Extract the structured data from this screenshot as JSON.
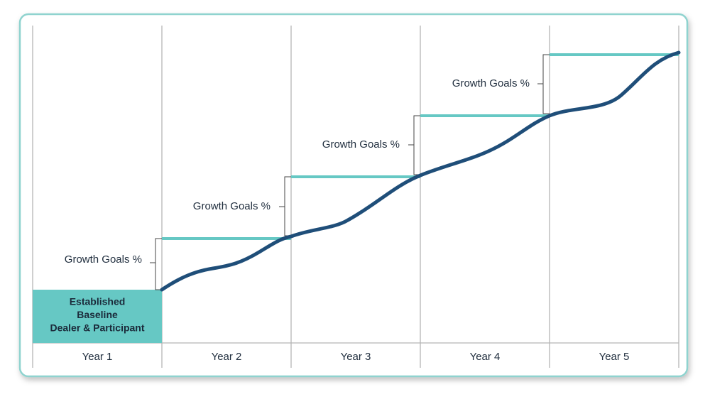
{
  "baseline": {
    "lines": [
      "Established",
      "Baseline",
      "Dealer & Participant"
    ]
  },
  "growth_goals": [
    {
      "label": "Growth Goals %"
    },
    {
      "label": "Growth Goals %"
    },
    {
      "label": "Growth Goals %"
    },
    {
      "label": "Growth Goals %"
    }
  ],
  "years": [
    "Year 1",
    "Year 2",
    "Year 3",
    "Year 4",
    "Year 5"
  ]
}
